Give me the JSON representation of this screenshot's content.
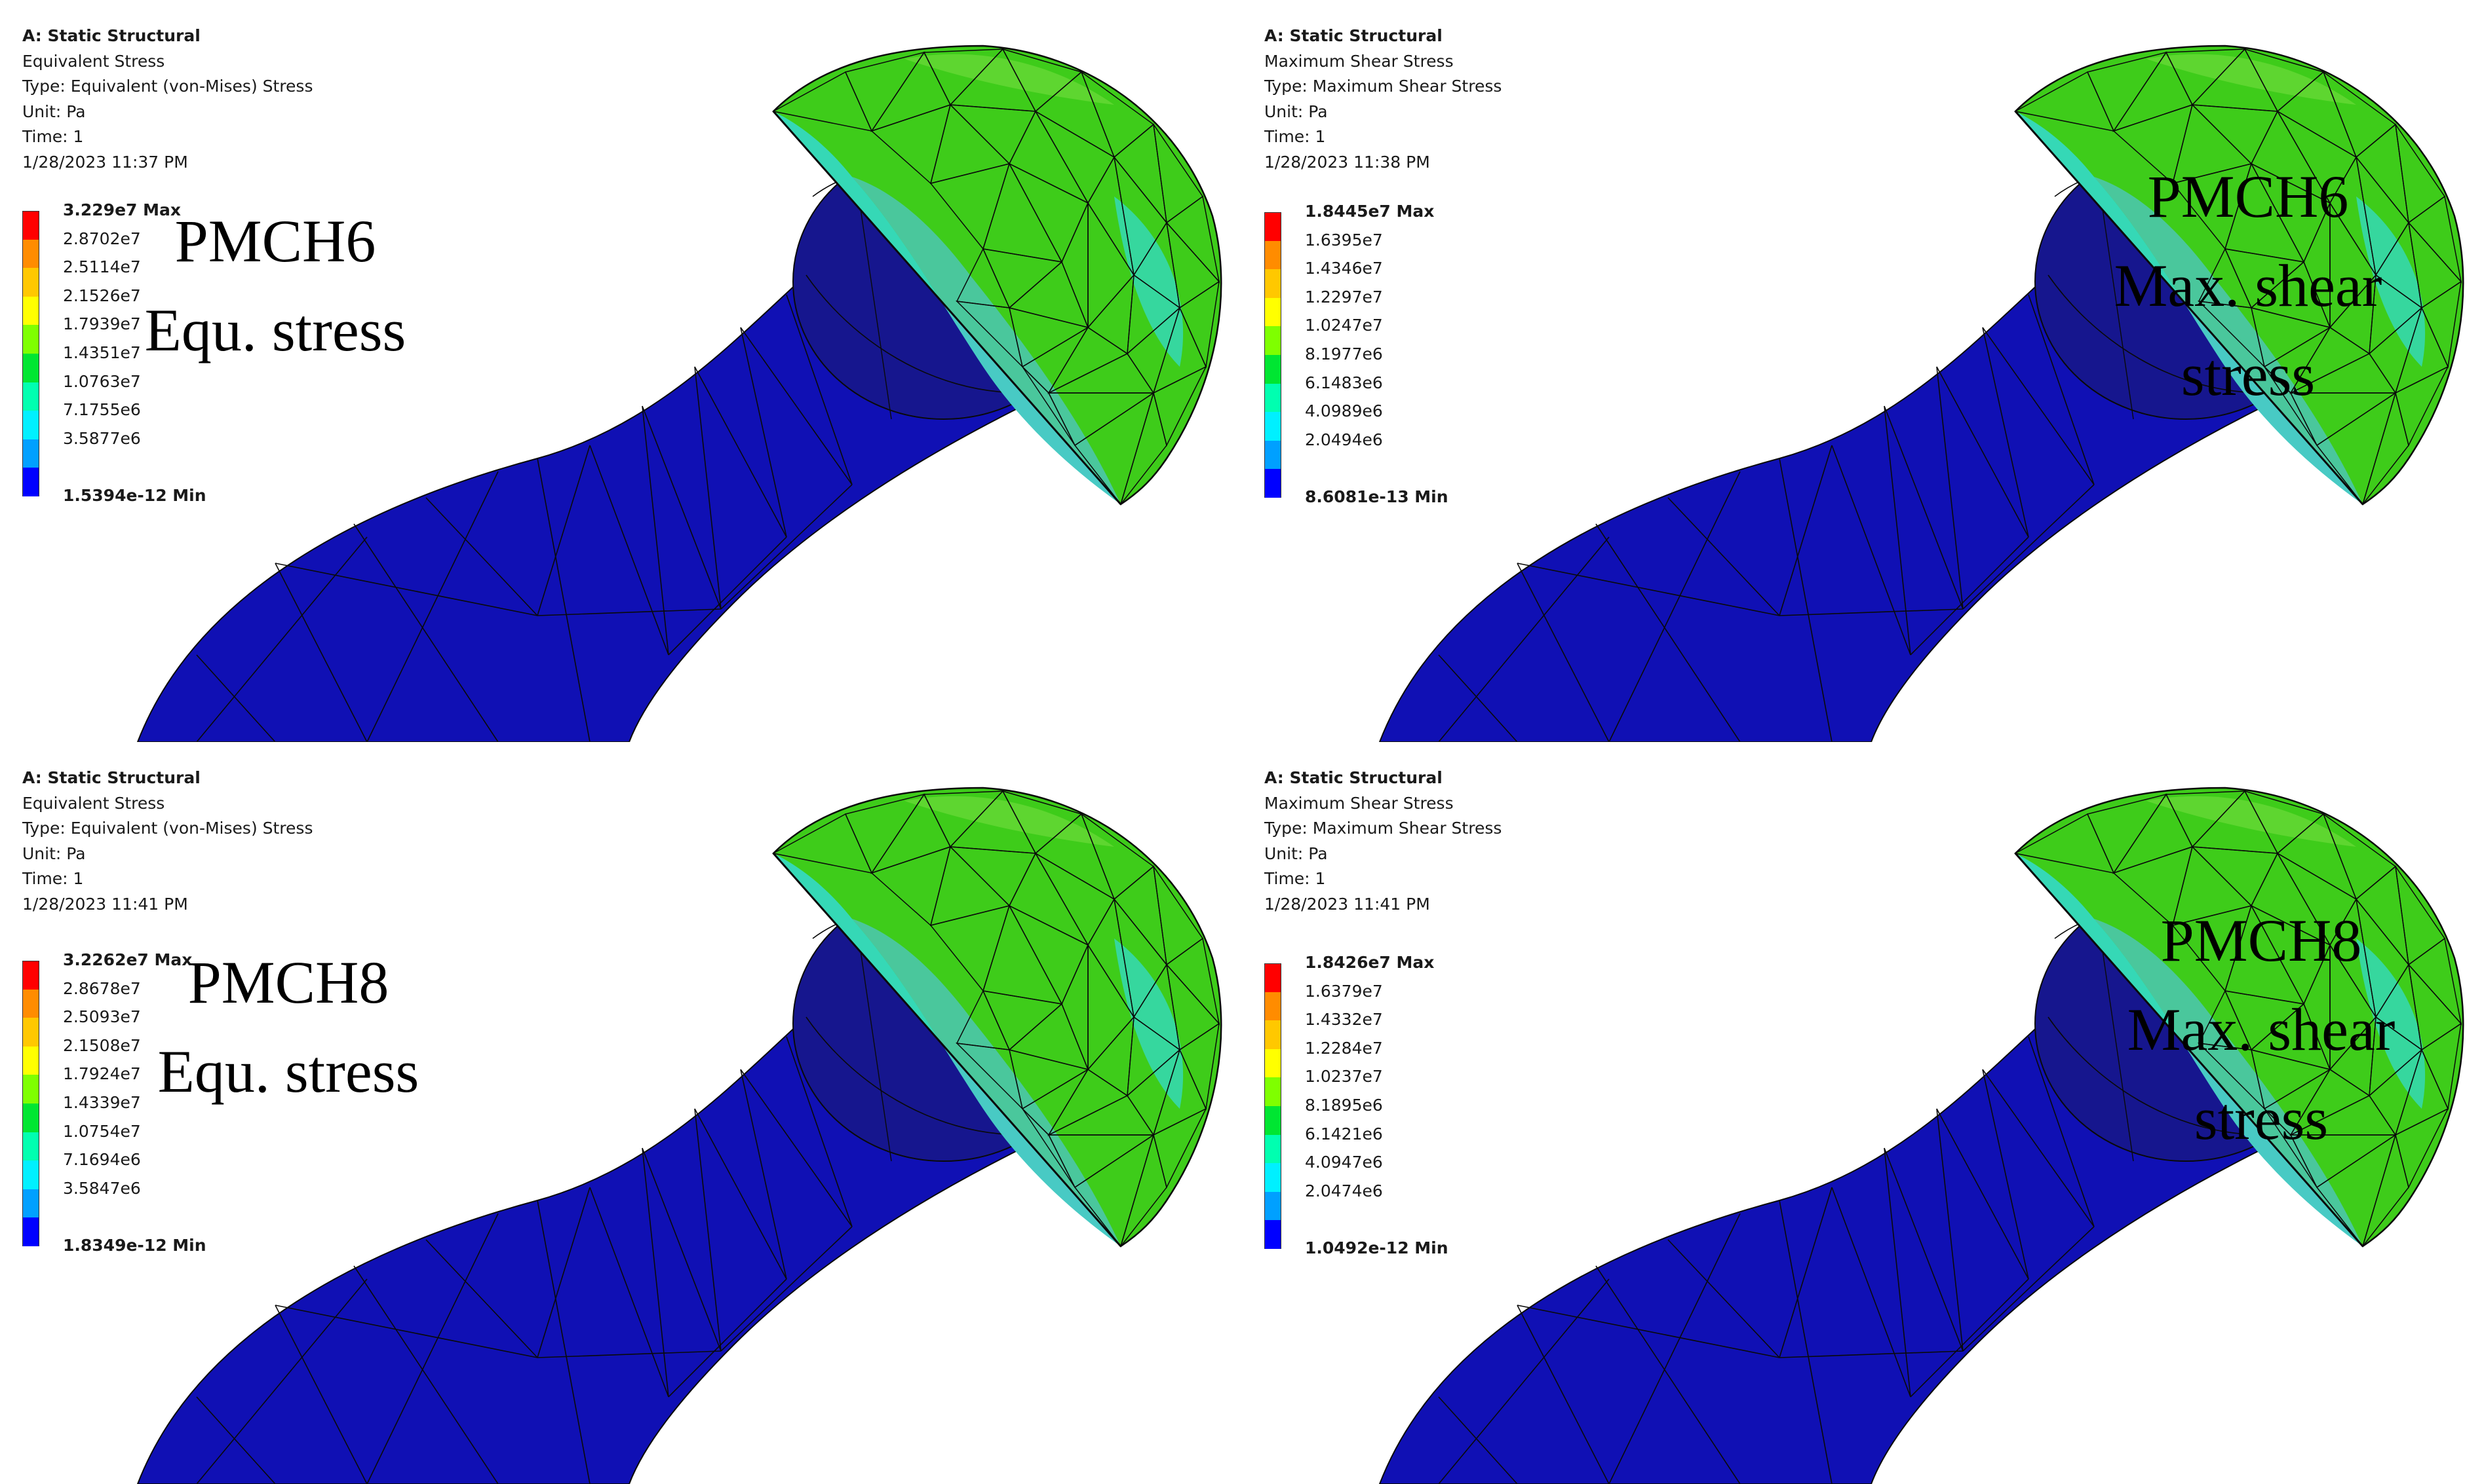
{
  "panels": [
    {
      "info": {
        "title": "A: Static Structural",
        "result_name": "Equivalent Stress",
        "type": "Type: Equivalent (von-Mises) Stress",
        "unit": "Unit: Pa",
        "time": "Time: 1",
        "timestamp": "1/28/2023 11:37 PM"
      },
      "legend": {
        "max_label": "3.229e7 Max",
        "levels": [
          "2.8702e7",
          "2.5114e7",
          "2.1526e7",
          "1.7939e7",
          "1.4351e7",
          "1.0763e7",
          "7.1755e6",
          "3.5877e6"
        ],
        "min_label": "1.5394e-12 Min"
      },
      "caption": {
        "line1": "PMCH6",
        "line2": "Equ. stress",
        "line3": ""
      }
    },
    {
      "info": {
        "title": "A: Static Structural",
        "result_name": "Maximum Shear Stress",
        "type": "Type: Maximum Shear Stress",
        "unit": "Unit: Pa",
        "time": "Time: 1",
        "timestamp": "1/28/2023 11:38 PM"
      },
      "legend": {
        "max_label": "1.8445e7 Max",
        "levels": [
          "1.6395e7",
          "1.4346e7",
          "1.2297e7",
          "1.0247e7",
          "8.1977e6",
          "6.1483e6",
          "4.0989e6",
          "2.0494e6"
        ],
        "min_label": "8.6081e-13 Min"
      },
      "caption": {
        "line1": "PMCH6",
        "line2": "Max. shear",
        "line3": "stress"
      }
    },
    {
      "info": {
        "title": "A: Static Structural",
        "result_name": "Equivalent Stress",
        "type": "Type: Equivalent (von-Mises) Stress",
        "unit": "Unit: Pa",
        "time": "Time: 1",
        "timestamp": "1/28/2023 11:41 PM"
      },
      "legend": {
        "max_label": "3.2262e7 Max",
        "levels": [
          "2.8678e7",
          "2.5093e7",
          "2.1508e7",
          "1.7924e7",
          "1.4339e7",
          "1.0754e7",
          "7.1694e6",
          "3.5847e6"
        ],
        "min_label": "1.8349e-12 Min"
      },
      "caption": {
        "line1": "PMCH8",
        "line2": "Equ. stress",
        "line3": ""
      }
    },
    {
      "info": {
        "title": "A: Static Structural",
        "result_name": "Maximum Shear Stress",
        "type": "Type: Maximum Shear Stress",
        "unit": "Unit: Pa",
        "time": "Time: 1",
        "timestamp": "1/28/2023 11:41 PM"
      },
      "legend": {
        "max_label": "1.8426e7 Max",
        "levels": [
          "1.6379e7",
          "1.4332e7",
          "1.2284e7",
          "1.0237e7",
          "8.1895e6",
          "6.1421e6",
          "4.0947e6",
          "2.0474e6"
        ],
        "min_label": "1.0492e-12 Min"
      },
      "caption": {
        "line1": "PMCH8",
        "line2": "Max. shear",
        "line3": "stress"
      }
    }
  ],
  "legend_colors": [
    "#ff0000",
    "#ff8c00",
    "#ffc800",
    "#ffff00",
    "#7fff00",
    "#00e632",
    "#00ffb0",
    "#00f0ff",
    "#00a0ff",
    "#0000ff"
  ],
  "model_colors": {
    "stem": "#1010b4",
    "neck_shadow": "#0a0a7a",
    "ball": "#16168e",
    "cup_green": "#3ecc1a",
    "cup_light_green": "#5ed630",
    "cup_cyan": "#35d8b6",
    "cup_teal": "#4fc6c8",
    "mesh": "#0a0a0a"
  }
}
